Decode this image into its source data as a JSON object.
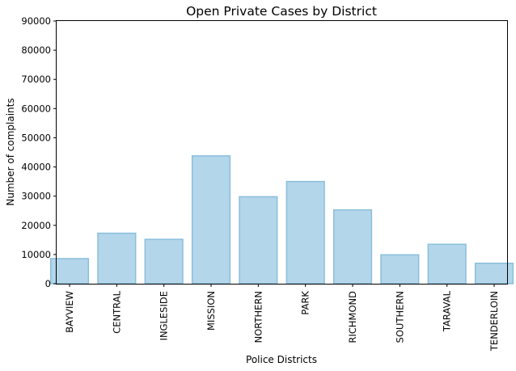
{
  "chart_data": {
    "type": "bar",
    "title": "Open Private Cases by District",
    "xlabel": "Police Districts",
    "ylabel": "Number of complaints",
    "categories": [
      "BAYVIEW",
      "CENTRAL",
      "INGLESIDE",
      "MISSION",
      "NORTHERN",
      "PARK",
      "RICHMOND",
      "SOUTHERN",
      "TARAVAL",
      "TENDERLOIN"
    ],
    "values": [
      8600,
      17300,
      15200,
      43800,
      29800,
      35000,
      25300,
      9900,
      13500,
      7000
    ],
    "ylim": [
      0,
      90000
    ],
    "yticks": [
      0,
      10000,
      20000,
      30000,
      40000,
      50000,
      60000,
      70000,
      80000,
      90000
    ],
    "grid": false,
    "bar_fill": "#b3d6eb",
    "bar_edge": "#8bbfdb"
  }
}
